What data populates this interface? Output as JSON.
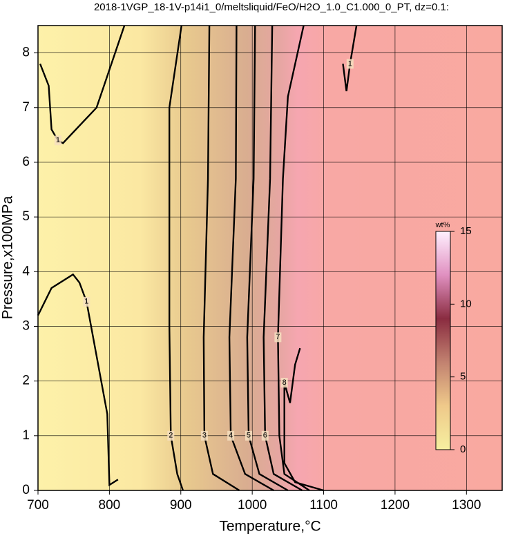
{
  "chart_data": {
    "type": "contour",
    "title": "2018-1VGP_18-1V-p14i1_0/meltsliquid/FeO/H2O_1.0_C1.000_0_PT, dz=0.1:",
    "x_label": "Temperature,°C",
    "y_label": "Pressure,x100MPa",
    "xlim": [
      700,
      1350
    ],
    "xticks": [
      700,
      800,
      900,
      1000,
      1100,
      1200,
      1300
    ],
    "ylim": [
      0,
      8.5
    ],
    "yticks": [
      0,
      1,
      2,
      3,
      4,
      5,
      6,
      7,
      8
    ],
    "grid": true,
    "colorbar": {
      "label": "wt%",
      "lim": [
        0,
        15
      ],
      "ticks": [
        0,
        5,
        10,
        15
      ]
    },
    "contours": [
      {
        "level": 1,
        "x": [
          703,
          715,
          719,
          728,
          735,
          782,
          821
        ],
        "y": [
          7.8,
          7.4,
          6.6,
          6.4,
          6.35,
          7.0,
          8.5
        ]
      },
      {
        "level": 1,
        "x": [
          700,
          719,
          749,
          758,
          768,
          797,
          800,
          812
        ],
        "y": [
          3.2,
          3.7,
          3.95,
          3.8,
          3.45,
          1.4,
          0.1,
          0.2
        ]
      },
      {
        "level": 1,
        "x": [
          1127,
          1132,
          1137,
          1146
        ],
        "y": [
          7.8,
          7.3,
          7.8,
          8.5
        ]
      },
      {
        "level": 2,
        "x": [
          901,
          884,
          884,
          886,
          895,
          903
        ],
        "y": [
          8.5,
          7.0,
          3.0,
          1.0,
          0.3,
          0
        ]
      },
      {
        "level": 3,
        "x": [
          940,
          938,
          932,
          933,
          945,
          982
        ],
        "y": [
          8.5,
          5.7,
          2.8,
          1.0,
          0.3,
          0
        ]
      },
      {
        "level": 4,
        "x": [
          978,
          977,
          968,
          970,
          990,
          1030
        ],
        "y": [
          8.5,
          5.7,
          2.8,
          1.0,
          0.3,
          0
        ]
      },
      {
        "level": 5,
        "x": [
          1004,
          1002,
          993,
          995,
          1010,
          1050
        ],
        "y": [
          8.5,
          5.7,
          2.8,
          1.0,
          0.3,
          0
        ]
      },
      {
        "level": 6,
        "x": [
          1028,
          1025,
          1016,
          1018,
          1030,
          1070
        ],
        "y": [
          8.5,
          5.7,
          2.8,
          1.0,
          0.3,
          0
        ]
      },
      {
        "level": 7,
        "x": [
          1072,
          1050,
          1043,
          1036,
          1038,
          1045,
          1080
        ],
        "y": [
          8.5,
          7.2,
          5.7,
          2.8,
          1.0,
          0.3,
          0
        ]
      },
      {
        "level": 8,
        "x": [
          1067,
          1060,
          1053,
          1045,
          1045,
          1060,
          1100
        ],
        "y": [
          2.6,
          2.3,
          1.6,
          1.97,
          0.5,
          0.15,
          0
        ]
      }
    ]
  }
}
